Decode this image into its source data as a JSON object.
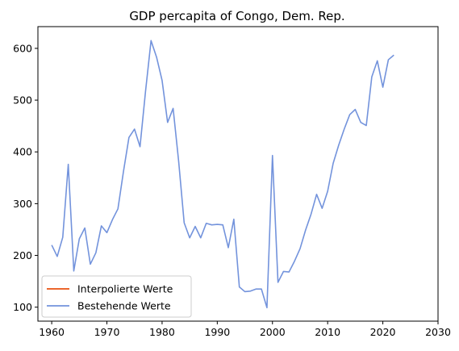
{
  "chart_data": {
    "type": "line",
    "title": "GDP percapita of Congo, Dem. Rep.",
    "xlabel": "",
    "ylabel": "",
    "xlim": [
      1957.5,
      2030
    ],
    "ylim": [
      73,
      642
    ],
    "x_ticks": [
      1960,
      1970,
      1980,
      1990,
      2000,
      2010,
      2020,
      2030
    ],
    "y_ticks": [
      100,
      200,
      300,
      400,
      500,
      600
    ],
    "grid": false,
    "legend_position": "lower-left",
    "series": [
      {
        "name": "Interpolierte Werte",
        "color": "#e8500f",
        "x": [],
        "y": []
      },
      {
        "name": "Bestehende Werte",
        "color": "#7393dc",
        "x": [
          1960,
          1961,
          1962,
          1963,
          1964,
          1965,
          1966,
          1967,
          1968,
          1969,
          1970,
          1971,
          1972,
          1973,
          1974,
          1975,
          1976,
          1977,
          1978,
          1979,
          1980,
          1981,
          1982,
          1983,
          1984,
          1985,
          1986,
          1987,
          1988,
          1989,
          1990,
          1991,
          1992,
          1993,
          1994,
          1995,
          1996,
          1997,
          1998,
          1999,
          2000,
          2001,
          2002,
          2003,
          2004,
          2005,
          2006,
          2007,
          2008,
          2009,
          2010,
          2011,
          2012,
          2013,
          2014,
          2015,
          2016,
          2017,
          2018,
          2019,
          2020,
          2021,
          2022
        ],
        "y": [
          220,
          198,
          235,
          376,
          170,
          232,
          253,
          183,
          205,
          257,
          244,
          269,
          290,
          362,
          428,
          444,
          410,
          517,
          615,
          583,
          538,
          457,
          484,
          382,
          263,
          234,
          256,
          234,
          262,
          259,
          260,
          259,
          215,
          270,
          139,
          130,
          131,
          135,
          135,
          99,
          393,
          148,
          169,
          168,
          189,
          213,
          249,
          280,
          318,
          291,
          324,
          378,
          413,
          444,
          472,
          482,
          457,
          451,
          545,
          576,
          525,
          578,
          587
        ]
      }
    ]
  }
}
